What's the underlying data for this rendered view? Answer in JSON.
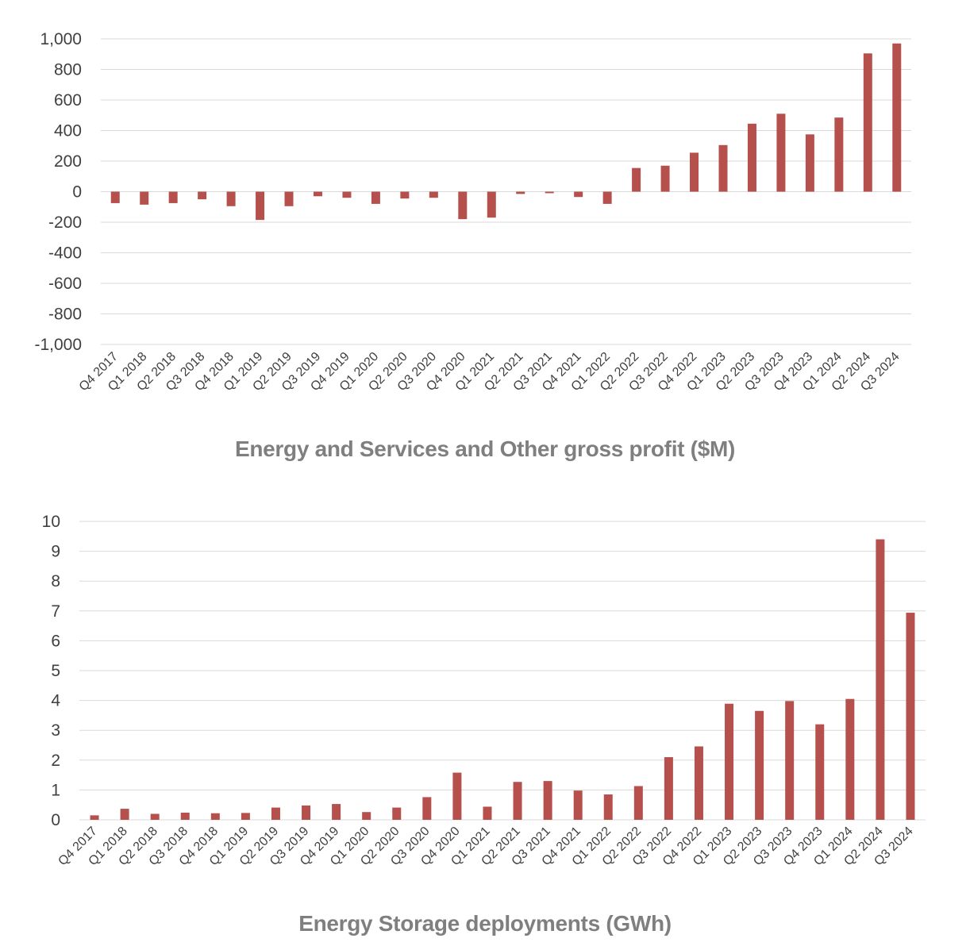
{
  "chart_data": [
    {
      "type": "bar",
      "title": "Energy and Services and Other gross profit ($M)",
      "categories": [
        "Q4 2017",
        "Q1 2018",
        "Q2 2018",
        "Q3 2018",
        "Q4 2018",
        "Q1 2019",
        "Q2 2019",
        "Q3 2019",
        "Q4 2019",
        "Q1 2020",
        "Q2 2020",
        "Q3 2020",
        "Q4 2020",
        "Q1 2021",
        "Q2 2021",
        "Q3 2021",
        "Q4 2021",
        "Q1 2022",
        "Q2 2022",
        "Q3 2022",
        "Q4 2022",
        "Q1 2023",
        "Q2 2023",
        "Q3 2023",
        "Q4 2023",
        "Q1 2024",
        "Q2 2024",
        "Q3 2024"
      ],
      "values": [
        -75,
        -85,
        -75,
        -50,
        -95,
        -185,
        -95,
        -30,
        -40,
        -80,
        -45,
        -40,
        -180,
        -170,
        -15,
        -10,
        -35,
        -80,
        155,
        170,
        255,
        305,
        445,
        510,
        375,
        485,
        905,
        970
      ],
      "ylim": [
        -1000,
        1000
      ],
      "yticks": [
        1000,
        800,
        600,
        400,
        200,
        0,
        -200,
        -400,
        -600,
        -800,
        -1000
      ],
      "ytick_labels": [
        "1,000",
        "800",
        "600",
        "400",
        "200",
        "0",
        "-200",
        "-400",
        "-600",
        "-800",
        "-1,000"
      ],
      "bar_color": "#b5504c",
      "grid": true
    },
    {
      "type": "bar",
      "title": "Energy Storage deployments (GWh)",
      "categories": [
        "Q4 2017",
        "Q1 2018",
        "Q2 2018",
        "Q3 2018",
        "Q4 2018",
        "Q1 2019",
        "Q2 2019",
        "Q3 2019",
        "Q4 2019",
        "Q1 2020",
        "Q2 2020",
        "Q3 2020",
        "Q4 2020",
        "Q1 2021",
        "Q2 2021",
        "Q3 2021",
        "Q4 2021",
        "Q1 2022",
        "Q2 2022",
        "Q3 2022",
        "Q4 2022",
        "Q1 2023",
        "Q2 2023",
        "Q3 2023",
        "Q4 2023",
        "Q1 2024",
        "Q2 2024",
        "Q3 2024"
      ],
      "values": [
        0.15,
        0.37,
        0.2,
        0.24,
        0.22,
        0.23,
        0.41,
        0.48,
        0.53,
        0.26,
        0.41,
        0.76,
        1.58,
        0.44,
        1.27,
        1.3,
        0.98,
        0.85,
        1.13,
        2.1,
        2.46,
        3.89,
        3.65,
        3.98,
        3.2,
        4.05,
        9.4,
        6.94
      ],
      "ylim": [
        0,
        10
      ],
      "yticks": [
        10,
        9,
        8,
        7,
        6,
        5,
        4,
        3,
        2,
        1,
        0
      ],
      "ytick_labels": [
        "10",
        "9",
        "8",
        "7",
        "6",
        "5",
        "4",
        "3",
        "2",
        "1",
        "0"
      ],
      "bar_color": "#b5504c",
      "grid": true
    }
  ]
}
